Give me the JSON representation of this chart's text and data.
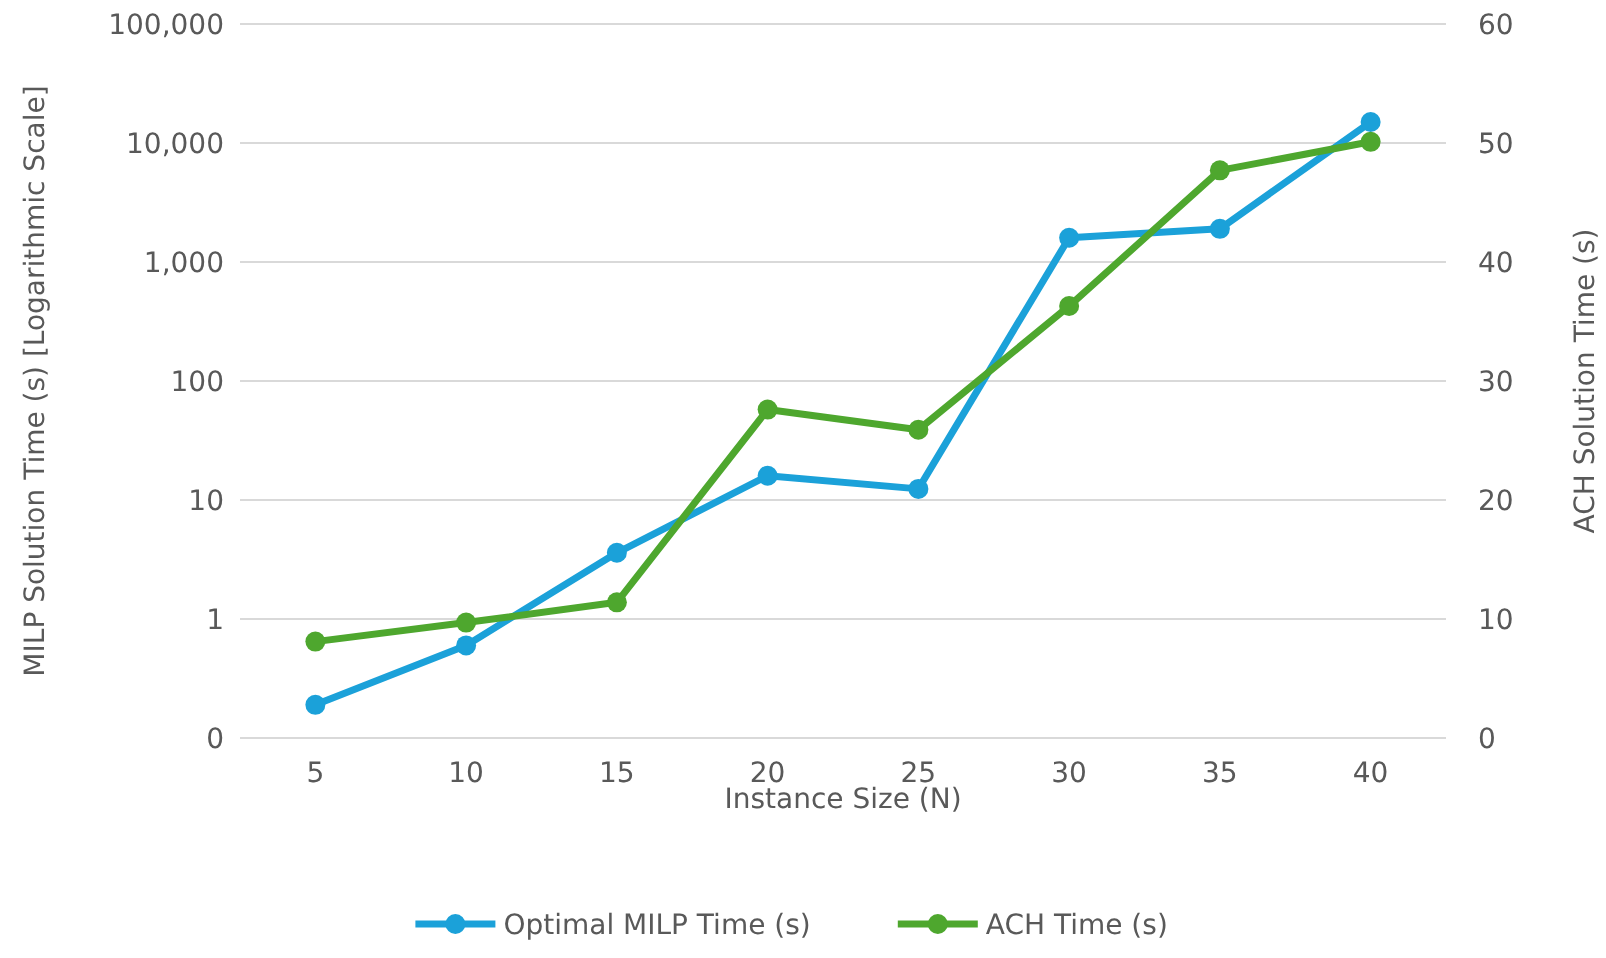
{
  "chart_data": {
    "type": "line",
    "xlabel": "Instance Size (N)",
    "ylabel": "MILP Solution Time (s) [Logarithmic Scale]",
    "y2label": "ACH Solution Time (s)",
    "categories": [
      "5",
      "10",
      "15",
      "20",
      "25",
      "30",
      "35",
      "40"
    ],
    "series": [
      {
        "name": "Optimal MILP Time (s)",
        "color": "#1ba1d9",
        "values": [
          0.19,
          0.6,
          3.6,
          16,
          12.4,
          1600,
          1900,
          15000
        ]
      },
      {
        "name": "ACH Time (s)",
        "color": "#4ea72e",
        "axis": "y2",
        "values": [
          8.1,
          9.7,
          11.4,
          27.6,
          25.9,
          36.3,
          47.7,
          50.1
        ]
      }
    ],
    "log": "y",
    "ylim": [
      0.1,
      100000
    ],
    "yticks": [
      {
        "value": 0.1,
        "label": "0"
      },
      {
        "value": 1,
        "label": "1"
      },
      {
        "value": 10,
        "label": "10"
      },
      {
        "value": 100,
        "label": "100"
      },
      {
        "value": 1000,
        "label": "1,000"
      },
      {
        "value": 10000,
        "label": "10,000"
      },
      {
        "value": 100000,
        "label": "100,000"
      }
    ],
    "y2lim": [
      0,
      60
    ],
    "y2ticks": [
      0,
      10,
      20,
      30,
      40,
      50,
      60
    ],
    "grid": "y",
    "legend": "bottom",
    "marker": "circle",
    "line_style": "solid"
  }
}
